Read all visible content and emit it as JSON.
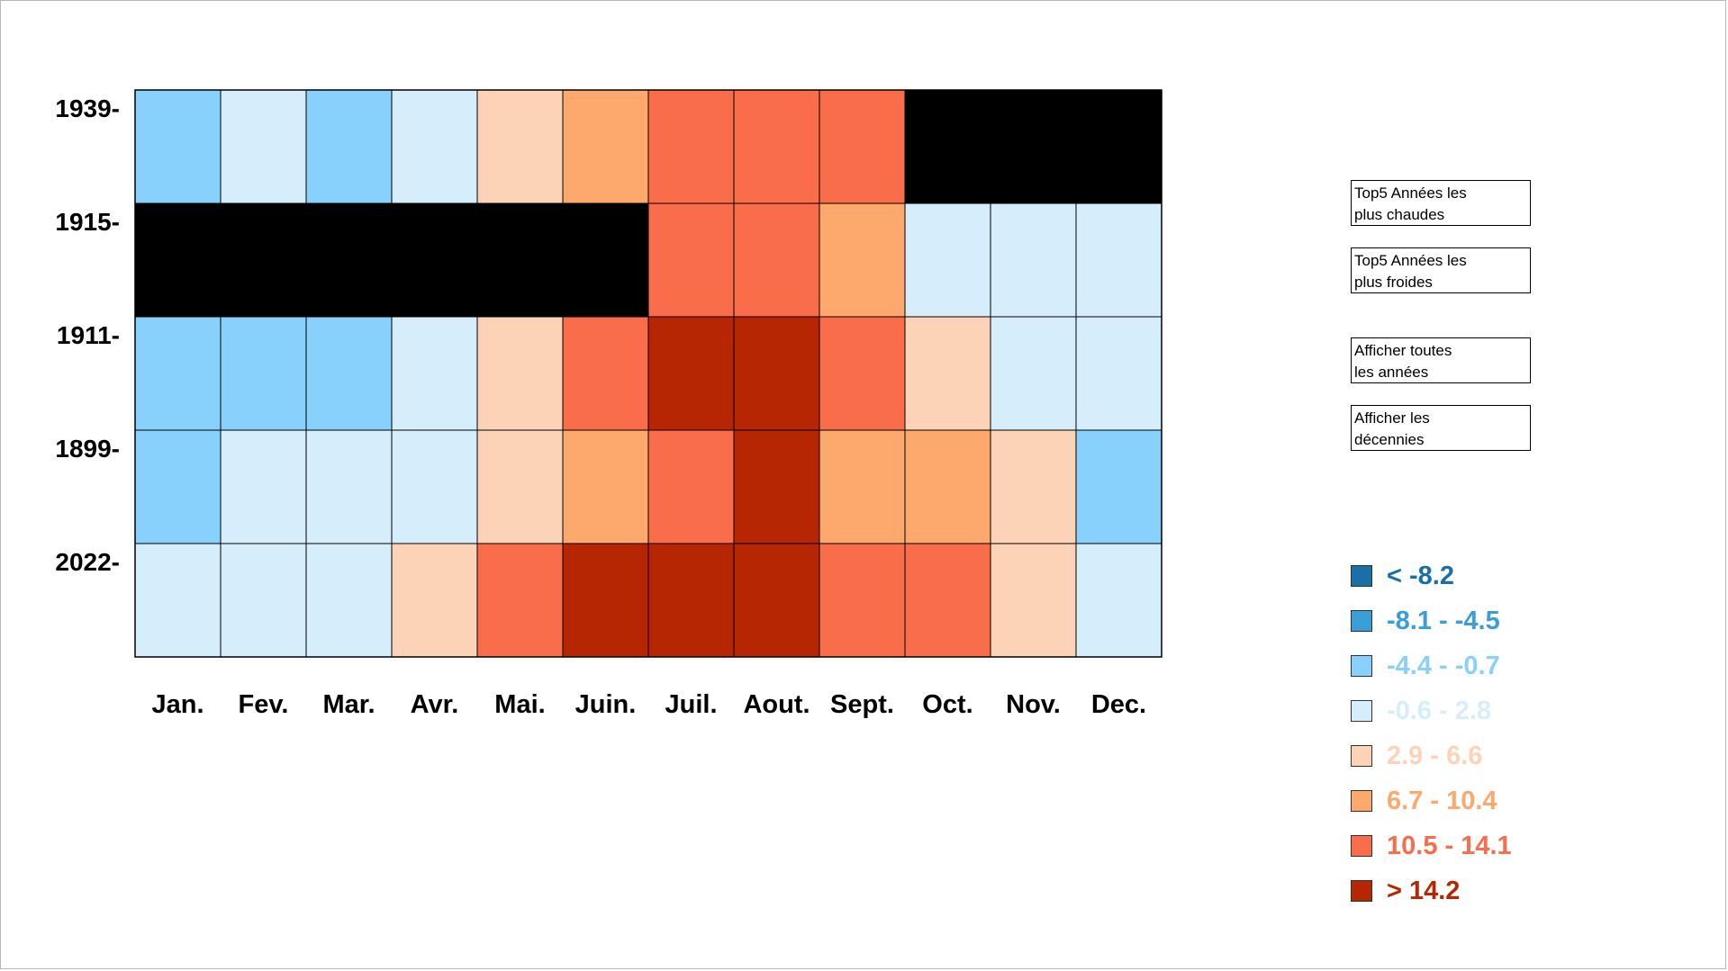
{
  "chart_data": {
    "type": "heatmap",
    "rows": [
      "1939",
      "1915",
      "1911",
      "1899",
      "2022"
    ],
    "row_label_suffix": "-",
    "columns": [
      "Jan.",
      "Fev.",
      "Mar.",
      "Avr.",
      "Mai.",
      "Juin.",
      "Juil.",
      "Aout.",
      "Sept.",
      "Oct.",
      "Nov.",
      "Dec."
    ],
    "missing_color": "#000000",
    "values": [
      [
        2,
        3,
        2,
        3,
        4,
        5,
        6,
        6,
        6,
        null,
        null,
        null
      ],
      [
        null,
        null,
        null,
        null,
        null,
        null,
        6,
        6,
        5,
        3,
        3,
        3
      ],
      [
        2,
        2,
        2,
        3,
        4,
        6,
        7,
        7,
        6,
        4,
        3,
        3
      ],
      [
        2,
        3,
        3,
        3,
        4,
        5,
        6,
        7,
        5,
        5,
        4,
        2
      ],
      [
        3,
        3,
        3,
        4,
        6,
        7,
        7,
        7,
        6,
        6,
        4,
        3
      ]
    ],
    "value_meaning": "index into legend classes (0 = < -8.2 ... 7 = > 14.2); null = no data",
    "legend": [
      {
        "label": "< -8.2",
        "color": "#1a6fa6",
        "text_color": "#1a6fa6"
      },
      {
        "label": "-8.1 - -4.5",
        "color": "#3a9fd8",
        "text_color": "#3a9fd8"
      },
      {
        "label": "-4.4 - -0.7",
        "color": "#87d1fc",
        "text_color": "#87d1fc"
      },
      {
        "label": "-0.6 - 2.8",
        "color": "#d6eefc",
        "text_color": "#d6eefc"
      },
      {
        "label": "2.9 - 6.6",
        "color": "#fdd3b8",
        "text_color": "#fdd3b8"
      },
      {
        "label": "6.7 - 10.4",
        "color": "#fda86c",
        "text_color": "#fda86c"
      },
      {
        "label": "10.5 - 14.1",
        "color": "#f96d4b",
        "text_color": "#f96d4b"
      },
      {
        "label": "> 14.2",
        "color": "#b72602",
        "text_color": "#b72602"
      }
    ],
    "legend_placement": "right-bottom"
  },
  "controls": {
    "top5_warm": "Top5 Années les\nplus chaudes",
    "top5_cold": "Top5 Années les\nplus froides",
    "all_years": "Afficher toutes\nles années",
    "decades": "Afficher les\ndécennies"
  }
}
